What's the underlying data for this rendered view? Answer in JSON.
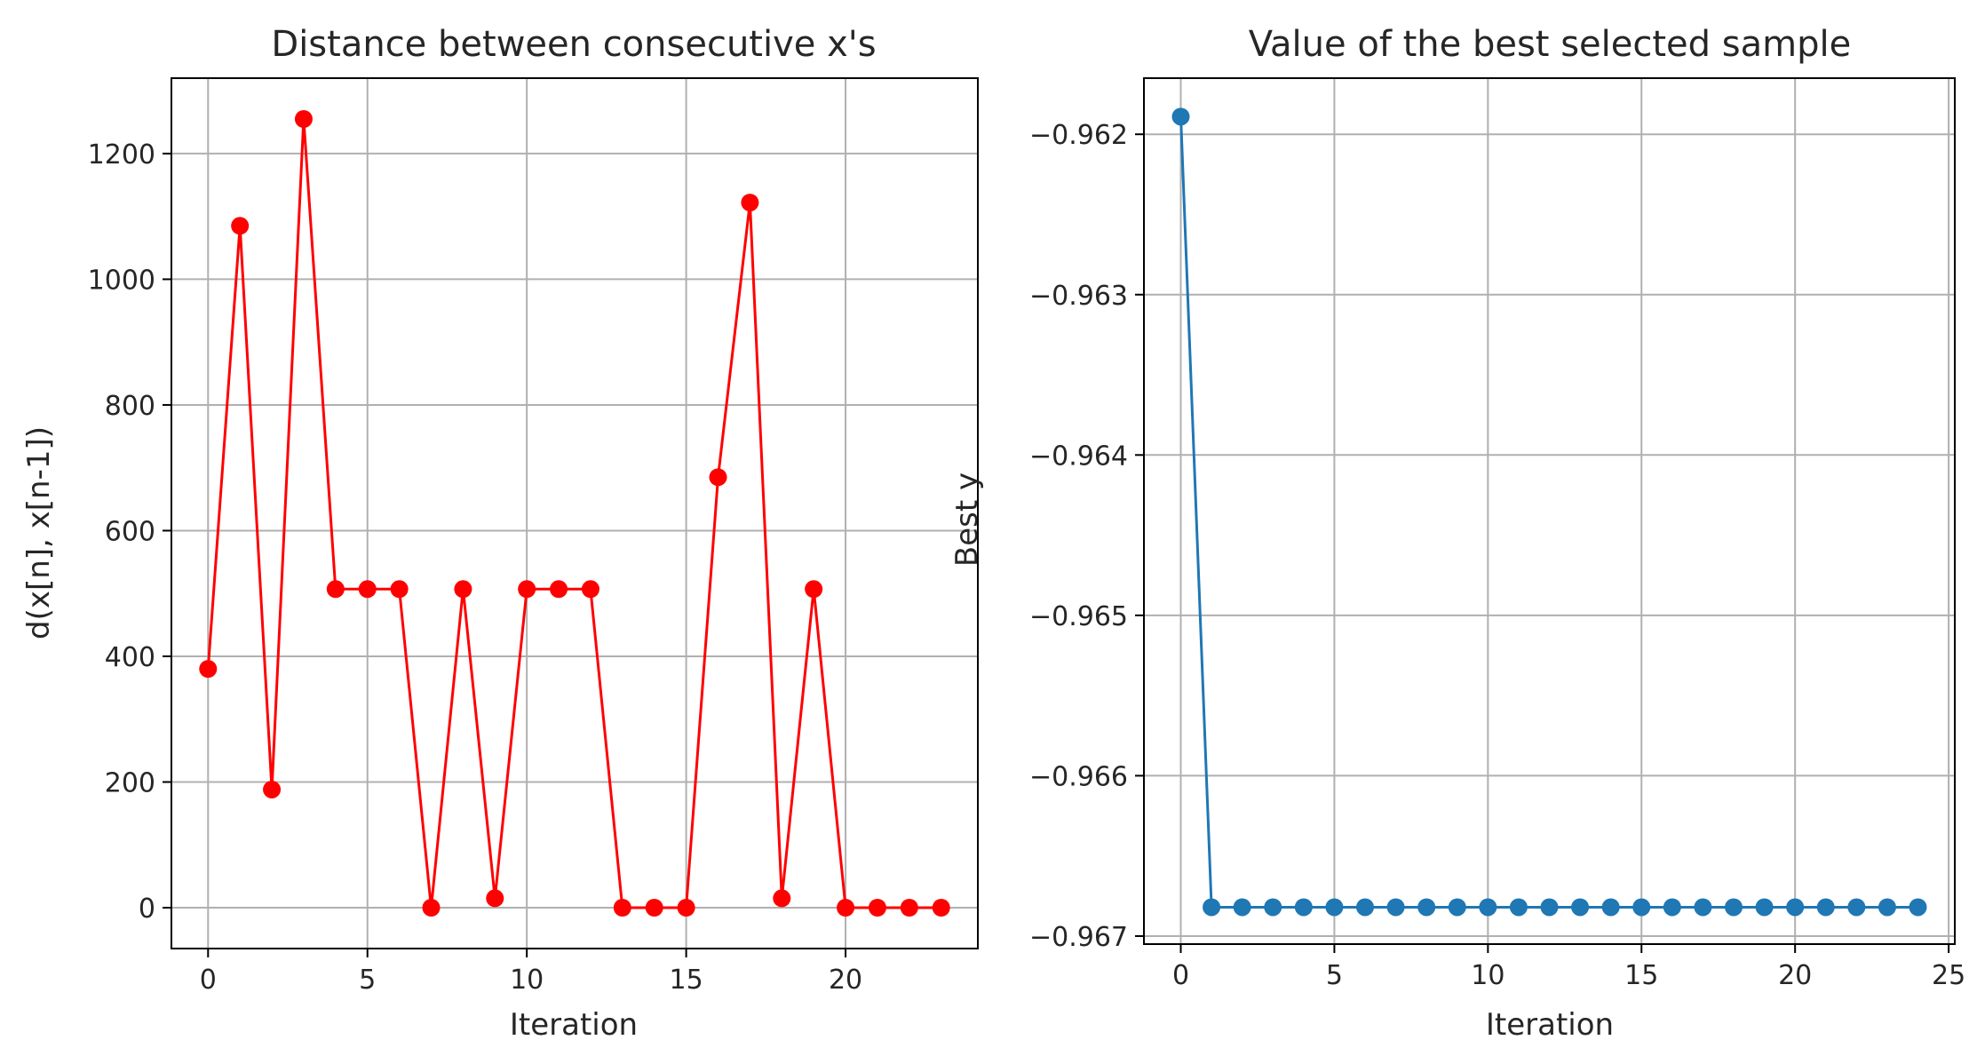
{
  "chart_data": [
    {
      "type": "line",
      "title": "Distance between consecutive x's",
      "xlabel": "Iteration",
      "ylabel": "d(x[n], x[n-1])",
      "xlim": [
        -1.15,
        24.15
      ],
      "ylim": [
        -65,
        1320
      ],
      "xticks": [
        0,
        5,
        10,
        15,
        20
      ],
      "yticks": [
        0,
        200,
        400,
        600,
        800,
        1000,
        1200
      ],
      "xtick_labels": [
        "0",
        "5",
        "10",
        "15",
        "20"
      ],
      "ytick_labels": [
        "0",
        "200",
        "400",
        "600",
        "800",
        "1000",
        "1200"
      ],
      "grid": true,
      "series": [
        {
          "color": "#ff0000",
          "marker": "circle",
          "x": [
            0,
            1,
            2,
            3,
            4,
            5,
            6,
            7,
            8,
            9,
            10,
            11,
            12,
            13,
            14,
            15,
            16,
            17,
            18,
            19,
            20,
            21,
            22,
            23
          ],
          "y": [
            380,
            1085,
            188,
            1255,
            507,
            507,
            507,
            0,
            507,
            15,
            507,
            507,
            507,
            0,
            0,
            0,
            685,
            1122,
            15,
            507,
            0,
            0,
            0,
            0
          ]
        }
      ]
    },
    {
      "type": "line",
      "title": "Value of the best selected sample",
      "xlabel": "Iteration",
      "ylabel": "Best y",
      "xlim": [
        -1.2,
        25.2
      ],
      "ylim": [
        -0.96705,
        -0.96165
      ],
      "xticks": [
        0,
        5,
        10,
        15,
        20,
        25
      ],
      "yticks": [
        -0.962,
        -0.963,
        -0.964,
        -0.965,
        -0.966,
        -0.967
      ],
      "xtick_labels": [
        "0",
        "5",
        "10",
        "15",
        "20",
        "25"
      ],
      "ytick_labels": [
        "−0.962",
        "−0.963",
        "−0.964",
        "−0.965",
        "−0.966",
        "−0.967"
      ],
      "grid": true,
      "series": [
        {
          "color": "#1f77b4",
          "marker": "circle",
          "x": [
            0,
            1,
            2,
            3,
            4,
            5,
            6,
            7,
            8,
            9,
            10,
            11,
            12,
            13,
            14,
            15,
            16,
            17,
            18,
            19,
            20,
            21,
            22,
            23,
            24
          ],
          "y": [
            -0.96189,
            -0.96682,
            -0.96682,
            -0.96682,
            -0.96682,
            -0.96682,
            -0.96682,
            -0.96682,
            -0.96682,
            -0.96682,
            -0.96682,
            -0.96682,
            -0.96682,
            -0.96682,
            -0.96682,
            -0.96682,
            -0.96682,
            -0.96682,
            -0.96682,
            -0.96682,
            -0.96682,
            -0.96682,
            -0.96682,
            -0.96682,
            -0.96682
          ]
        }
      ]
    }
  ]
}
